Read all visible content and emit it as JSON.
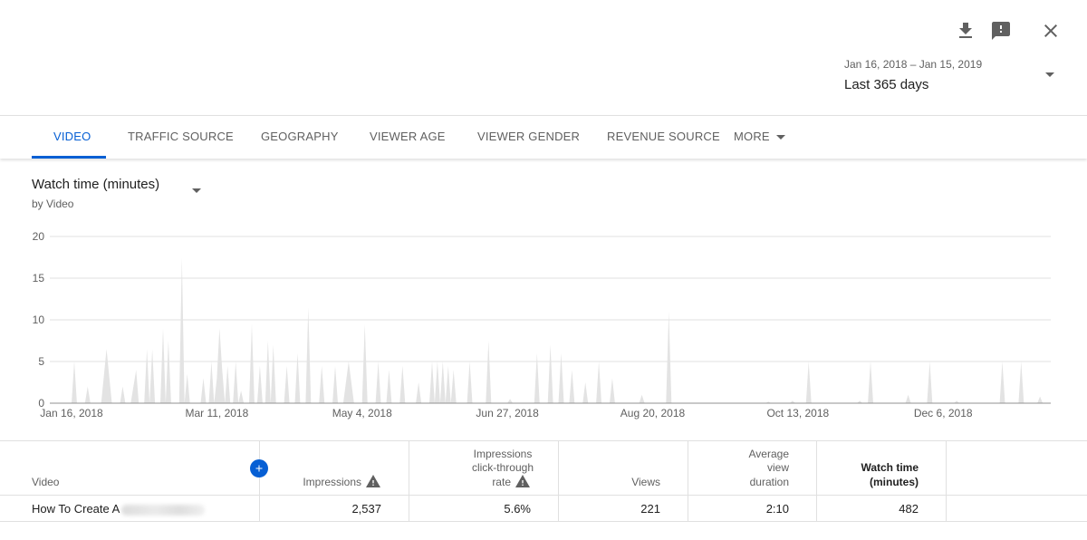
{
  "header": {
    "icons": [
      "download-icon",
      "feedback-icon",
      "close-icon"
    ],
    "date_range": "Jan 16, 2018 – Jan 15, 2019",
    "period": "Last 365 days"
  },
  "tabs": [
    {
      "label": "VIDEO",
      "active": true
    },
    {
      "label": "TRAFFIC SOURCE",
      "active": false
    },
    {
      "label": "GEOGRAPHY",
      "active": false
    },
    {
      "label": "VIEWER AGE",
      "active": false
    },
    {
      "label": "VIEWER GENDER",
      "active": false
    },
    {
      "label": "REVENUE SOURCE",
      "active": false
    },
    {
      "label": "MORE",
      "active": false
    }
  ],
  "metric": {
    "name": "Watch time (minutes)",
    "breakdown": "by Video"
  },
  "colors": {
    "accent": "#065fd4",
    "area_fill": "#e3e3e3",
    "grid": "#e0e0e0",
    "axis": "#909090",
    "text_secondary": "#606060"
  },
  "chart_data": {
    "type": "area",
    "ylim": [
      0,
      20
    ],
    "y_ticks": [
      0,
      5,
      10,
      15,
      20
    ],
    "x_range": [
      "2018-01-16",
      "2019-01-15"
    ],
    "x_ticks": [
      {
        "date": "2018-01-16",
        "label": "Jan 16, 2018"
      },
      {
        "date": "2018-03-11",
        "label": "Mar 11, 2018"
      },
      {
        "date": "2018-05-04",
        "label": "May 4, 2018"
      },
      {
        "date": "2018-06-27",
        "label": "Jun 27, 2018"
      },
      {
        "date": "2018-08-20",
        "label": "Aug 20, 2018"
      },
      {
        "date": "2018-10-13",
        "label": "Oct 13, 2018"
      },
      {
        "date": "2018-12-06",
        "label": "Dec 6, 2018"
      }
    ],
    "grid": true,
    "series": [
      {
        "points": [
          [
            "2018-01-16",
            0
          ],
          [
            "2018-01-17",
            5
          ],
          [
            "2018-01-18",
            0
          ],
          [
            "2018-01-21",
            0
          ],
          [
            "2018-01-22",
            2
          ],
          [
            "2018-01-23",
            0
          ],
          [
            "2018-01-27",
            0
          ],
          [
            "2018-01-29",
            6.5
          ],
          [
            "2018-01-31",
            0
          ],
          [
            "2018-02-03",
            0
          ],
          [
            "2018-02-04",
            2
          ],
          [
            "2018-02-05",
            0
          ],
          [
            "2018-02-07",
            0
          ],
          [
            "2018-02-09",
            4
          ],
          [
            "2018-02-10",
            0
          ],
          [
            "2018-02-12",
            0
          ],
          [
            "2018-02-13",
            6.5
          ],
          [
            "2018-02-14",
            0
          ],
          [
            "2018-02-15",
            6.5
          ],
          [
            "2018-02-16",
            0
          ],
          [
            "2018-02-18",
            0
          ],
          [
            "2018-02-19",
            9
          ],
          [
            "2018-02-20",
            0
          ],
          [
            "2018-02-21",
            7.5
          ],
          [
            "2018-02-22",
            0
          ],
          [
            "2018-02-25",
            0
          ],
          [
            "2018-02-26",
            17.5
          ],
          [
            "2018-02-27",
            0
          ],
          [
            "2018-02-28",
            3.5
          ],
          [
            "2018-03-01",
            0
          ],
          [
            "2018-03-05",
            0
          ],
          [
            "2018-03-06",
            3
          ],
          [
            "2018-03-07",
            0
          ],
          [
            "2018-03-08",
            0
          ],
          [
            "2018-03-09",
            5
          ],
          [
            "2018-03-10",
            0
          ],
          [
            "2018-03-11",
            3
          ],
          [
            "2018-03-12",
            9
          ],
          [
            "2018-03-13",
            4
          ],
          [
            "2018-03-14",
            0
          ],
          [
            "2018-03-15",
            4.5
          ],
          [
            "2018-03-16",
            0
          ],
          [
            "2018-03-17",
            0
          ],
          [
            "2018-03-18",
            5
          ],
          [
            "2018-03-19",
            0
          ],
          [
            "2018-03-20",
            1.5
          ],
          [
            "2018-03-21",
            0
          ],
          [
            "2018-03-23",
            0
          ],
          [
            "2018-03-24",
            9.5
          ],
          [
            "2018-03-25",
            0
          ],
          [
            "2018-03-26",
            0
          ],
          [
            "2018-03-27",
            4.5
          ],
          [
            "2018-03-28",
            0
          ],
          [
            "2018-03-29",
            0
          ],
          [
            "2018-03-30",
            7.5
          ],
          [
            "2018-03-31",
            0
          ],
          [
            "2018-04-01",
            7
          ],
          [
            "2018-04-02",
            0
          ],
          [
            "2018-04-05",
            0
          ],
          [
            "2018-04-06",
            4.5
          ],
          [
            "2018-04-07",
            0
          ],
          [
            "2018-04-09",
            0
          ],
          [
            "2018-04-10",
            6
          ],
          [
            "2018-04-11",
            0
          ],
          [
            "2018-04-13",
            0
          ],
          [
            "2018-04-14",
            11.5
          ],
          [
            "2018-04-15",
            0
          ],
          [
            "2018-04-18",
            0
          ],
          [
            "2018-04-19",
            4.5
          ],
          [
            "2018-04-20",
            0
          ],
          [
            "2018-04-23",
            0
          ],
          [
            "2018-04-24",
            4.5
          ],
          [
            "2018-04-25",
            0
          ],
          [
            "2018-04-27",
            0
          ],
          [
            "2018-04-29",
            5
          ],
          [
            "2018-05-01",
            0
          ],
          [
            "2018-05-04",
            0
          ],
          [
            "2018-05-05",
            9.5
          ],
          [
            "2018-05-06",
            0
          ],
          [
            "2018-05-09",
            0
          ],
          [
            "2018-05-10",
            5
          ],
          [
            "2018-05-11",
            0
          ],
          [
            "2018-05-13",
            0
          ],
          [
            "2018-05-14",
            4
          ],
          [
            "2018-05-15",
            0
          ],
          [
            "2018-05-18",
            0
          ],
          [
            "2018-05-19",
            4.5
          ],
          [
            "2018-05-20",
            0
          ],
          [
            "2018-05-24",
            0
          ],
          [
            "2018-05-25",
            2.5
          ],
          [
            "2018-05-26",
            0
          ],
          [
            "2018-05-29",
            0
          ],
          [
            "2018-05-30",
            5
          ],
          [
            "2018-05-31",
            0
          ],
          [
            "2018-06-01",
            5
          ],
          [
            "2018-06-02",
            0
          ],
          [
            "2018-06-03",
            5
          ],
          [
            "2018-06-04",
            0
          ],
          [
            "2018-06-05",
            4.5
          ],
          [
            "2018-06-06",
            0
          ],
          [
            "2018-06-07",
            4
          ],
          [
            "2018-06-08",
            0
          ],
          [
            "2018-06-12",
            0
          ],
          [
            "2018-06-13",
            5
          ],
          [
            "2018-06-14",
            0
          ],
          [
            "2018-06-19",
            0
          ],
          [
            "2018-06-20",
            7.5
          ],
          [
            "2018-06-21",
            0
          ],
          [
            "2018-06-27",
            0
          ],
          [
            "2018-06-28",
            0.5
          ],
          [
            "2018-06-29",
            0
          ],
          [
            "2018-07-07",
            0
          ],
          [
            "2018-07-08",
            6
          ],
          [
            "2018-07-09",
            0
          ],
          [
            "2018-07-12",
            0
          ],
          [
            "2018-07-13",
            7
          ],
          [
            "2018-07-14",
            0
          ],
          [
            "2018-07-16",
            0
          ],
          [
            "2018-07-17",
            6
          ],
          [
            "2018-07-18",
            0
          ],
          [
            "2018-07-20",
            0
          ],
          [
            "2018-07-21",
            4
          ],
          [
            "2018-07-22",
            0
          ],
          [
            "2018-07-25",
            0
          ],
          [
            "2018-07-26",
            2.5
          ],
          [
            "2018-07-27",
            0
          ],
          [
            "2018-07-30",
            0
          ],
          [
            "2018-07-31",
            5
          ],
          [
            "2018-08-01",
            0
          ],
          [
            "2018-08-04",
            0
          ],
          [
            "2018-08-05",
            3
          ],
          [
            "2018-08-06",
            0
          ],
          [
            "2018-08-15",
            0
          ],
          [
            "2018-08-16",
            1
          ],
          [
            "2018-08-17",
            0
          ],
          [
            "2018-08-25",
            0
          ],
          [
            "2018-08-26",
            11
          ],
          [
            "2018-08-27",
            0
          ],
          [
            "2018-10-01",
            0
          ],
          [
            "2018-10-02",
            0.2
          ],
          [
            "2018-10-03",
            0
          ],
          [
            "2018-10-10",
            0
          ],
          [
            "2018-10-11",
            0.3
          ],
          [
            "2018-10-12",
            0
          ],
          [
            "2018-10-16",
            0
          ],
          [
            "2018-10-17",
            5
          ],
          [
            "2018-10-18",
            0
          ],
          [
            "2018-11-04",
            0
          ],
          [
            "2018-11-05",
            0.3
          ],
          [
            "2018-11-06",
            0
          ],
          [
            "2018-11-08",
            0
          ],
          [
            "2018-11-09",
            5
          ],
          [
            "2018-11-10",
            0
          ],
          [
            "2018-11-22",
            0
          ],
          [
            "2018-11-23",
            1
          ],
          [
            "2018-11-24",
            0
          ],
          [
            "2018-11-30",
            0
          ],
          [
            "2018-12-01",
            5
          ],
          [
            "2018-12-02",
            0
          ],
          [
            "2018-12-10",
            0
          ],
          [
            "2018-12-11",
            0.3
          ],
          [
            "2018-12-12",
            0
          ],
          [
            "2018-12-27",
            0
          ],
          [
            "2018-12-28",
            5
          ],
          [
            "2018-12-29",
            0
          ],
          [
            "2019-01-03",
            0
          ],
          [
            "2019-01-04",
            5
          ],
          [
            "2019-01-05",
            0
          ],
          [
            "2019-01-10",
            0
          ],
          [
            "2019-01-11",
            0.8
          ],
          [
            "2019-01-12",
            0
          ],
          [
            "2019-01-15",
            0
          ]
        ]
      }
    ]
  },
  "table": {
    "headers": {
      "video": "Video",
      "impressions": "Impressions",
      "ctr": [
        "Impressions",
        "click-through",
        "rate"
      ],
      "views": "Views",
      "avd": [
        "Average",
        "view",
        "duration"
      ],
      "watch_time": [
        "Watch time",
        "(minutes)"
      ]
    },
    "rows": [
      {
        "title": "How To Create A",
        "impressions": "2,537",
        "ctr": "5.6%",
        "views": "221",
        "avd": "2:10",
        "watch_time": "482"
      }
    ]
  }
}
